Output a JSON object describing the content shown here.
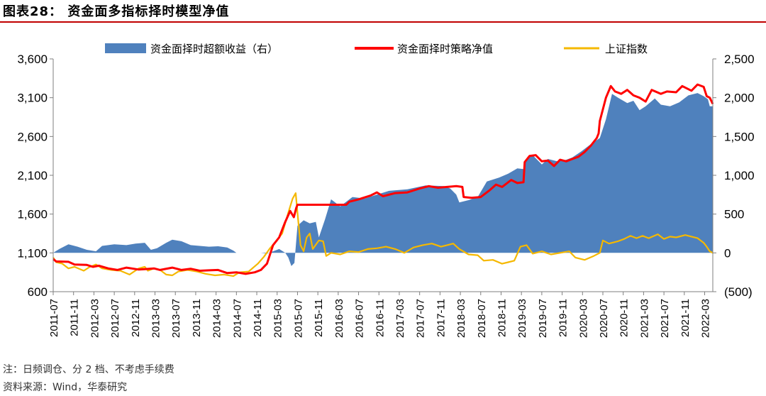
{
  "header": {
    "title": "图表28：  资金面多指标择时模型净值"
  },
  "footer": {
    "note": "注：日频调仓、分 2 档、不考虑手续费",
    "source": "资料来源：Wind，华泰研究"
  },
  "colors": {
    "excess": "#4f81bd",
    "strategy": "#ff0000",
    "index": "#f5b800",
    "rule": "#c00000"
  },
  "chart_data": {
    "type": "line",
    "title": "资金面多指标择时模型净值",
    "legend": [
      "资金面择时超额收益（右）",
      "资金面择时策略净值",
      "上证指数"
    ],
    "legend_position": "top",
    "left_axis": {
      "range": [
        600,
        3600
      ],
      "ticks": [
        "600",
        "1,100",
        "1,600",
        "2,100",
        "2,600",
        "3,100",
        "3,600"
      ]
    },
    "right_axis": {
      "range": [
        -500,
        2500
      ],
      "ticks": [
        "(500)",
        "0",
        "500",
        "1,000",
        "1,500",
        "2,000",
        "2,500"
      ]
    },
    "x_tick_labels": [
      "2011-07",
      "2011-11",
      "2012-03",
      "2012-07",
      "2012-11",
      "2013-03",
      "2013-07",
      "2013-11",
      "2014-03",
      "2014-07",
      "2014-11",
      "2015-03",
      "2015-07",
      "2015-11",
      "2016-03",
      "2016-07",
      "2016-11",
      "2017-03",
      "2017-07",
      "2017-11",
      "2018-03",
      "2018-07",
      "2018-11",
      "2019-03",
      "2019-07",
      "2019-11",
      "2020-03",
      "2020-07",
      "2020-11",
      "2021-03",
      "2021-07",
      "2021-11",
      "2022-03"
    ],
    "x_time_range": [
      2011.5,
      2022.3
    ],
    "series": [
      {
        "name": "资金面择时超额收益（右）",
        "type": "area",
        "axis": "right",
        "points": [
          [
            2011.5,
            0
          ],
          [
            2011.6,
            50
          ],
          [
            2011.75,
            110
          ],
          [
            2011.9,
            80
          ],
          [
            2012.05,
            40
          ],
          [
            2012.2,
            20
          ],
          [
            2012.3,
            90
          ],
          [
            2012.5,
            110
          ],
          [
            2012.7,
            100
          ],
          [
            2012.85,
            120
          ],
          [
            2013.0,
            130
          ],
          [
            2013.1,
            40
          ],
          [
            2013.2,
            60
          ],
          [
            2013.35,
            130
          ],
          [
            2013.45,
            170
          ],
          [
            2013.6,
            150
          ],
          [
            2013.75,
            100
          ],
          [
            2013.9,
            90
          ],
          [
            2014.05,
            80
          ],
          [
            2014.2,
            85
          ],
          [
            2014.35,
            70
          ],
          [
            2014.45,
            30
          ],
          [
            2014.5,
            0
          ],
          [
            2014.9,
            0
          ],
          [
            2015.0,
            -10
          ],
          [
            2015.1,
            20
          ],
          [
            2015.2,
            50
          ],
          [
            2015.3,
            0
          ],
          [
            2015.35,
            -60
          ],
          [
            2015.4,
            -170
          ],
          [
            2015.45,
            -130
          ],
          [
            2015.5,
            350
          ],
          [
            2015.6,
            420
          ],
          [
            2015.7,
            380
          ],
          [
            2015.8,
            400
          ],
          [
            2015.85,
            200
          ],
          [
            2015.95,
            430
          ],
          [
            2016.05,
            690
          ],
          [
            2016.2,
            600
          ],
          [
            2016.4,
            720
          ],
          [
            2016.6,
            700
          ],
          [
            2016.8,
            750
          ],
          [
            2017.0,
            800
          ],
          [
            2017.3,
            820
          ],
          [
            2017.6,
            870
          ],
          [
            2017.9,
            860
          ],
          [
            2018.0,
            830
          ],
          [
            2018.1,
            750
          ],
          [
            2018.15,
            650
          ],
          [
            2018.3,
            680
          ],
          [
            2018.45,
            720
          ],
          [
            2018.6,
            920
          ],
          [
            2018.8,
            970
          ],
          [
            2018.95,
            1020
          ],
          [
            2019.1,
            1090
          ],
          [
            2019.2,
            1080
          ],
          [
            2019.25,
            1220
          ],
          [
            2019.35,
            1260
          ],
          [
            2019.5,
            1140
          ],
          [
            2019.6,
            1210
          ],
          [
            2019.75,
            1180
          ],
          [
            2019.9,
            1200
          ],
          [
            2020.0,
            1230
          ],
          [
            2020.15,
            1310
          ],
          [
            2020.3,
            1400
          ],
          [
            2020.45,
            1480
          ],
          [
            2020.55,
            1720
          ],
          [
            2020.65,
            2050
          ],
          [
            2020.75,
            2000
          ],
          [
            2020.9,
            1930
          ],
          [
            2021.0,
            1960
          ],
          [
            2021.1,
            1840
          ],
          [
            2021.2,
            1890
          ],
          [
            2021.35,
            1990
          ],
          [
            2021.45,
            1910
          ],
          [
            2021.6,
            1890
          ],
          [
            2021.75,
            1940
          ],
          [
            2021.9,
            2030
          ],
          [
            2022.05,
            2060
          ],
          [
            2022.15,
            2020
          ],
          [
            2022.22,
            1980
          ],
          [
            2022.25,
            1890
          ],
          [
            2022.3,
            1890
          ]
        ]
      },
      {
        "name": "资金面择时策略净值",
        "type": "line",
        "axis": "left",
        "points": [
          [
            2011.5,
            1020
          ],
          [
            2011.55,
            990
          ],
          [
            2011.75,
            985
          ],
          [
            2011.85,
            950
          ],
          [
            2012.05,
            945
          ],
          [
            2012.15,
            920
          ],
          [
            2012.25,
            935
          ],
          [
            2012.4,
            900
          ],
          [
            2012.55,
            880
          ],
          [
            2012.7,
            910
          ],
          [
            2012.9,
            885
          ],
          [
            2013.0,
            890
          ],
          [
            2013.15,
            900
          ],
          [
            2013.25,
            880
          ],
          [
            2013.45,
            910
          ],
          [
            2013.6,
            880
          ],
          [
            2013.75,
            895
          ],
          [
            2013.9,
            870
          ],
          [
            2014.05,
            875
          ],
          [
            2014.2,
            880
          ],
          [
            2014.35,
            840
          ],
          [
            2014.5,
            850
          ],
          [
            2014.65,
            830
          ],
          [
            2014.8,
            850
          ],
          [
            2014.9,
            880
          ],
          [
            2015.0,
            960
          ],
          [
            2015.1,
            1200
          ],
          [
            2015.2,
            1300
          ],
          [
            2015.3,
            1500
          ],
          [
            2015.38,
            1640
          ],
          [
            2015.44,
            1560
          ],
          [
            2015.48,
            1680
          ],
          [
            2015.5,
            1720
          ],
          [
            2015.6,
            1720
          ],
          [
            2016.0,
            1720
          ],
          [
            2016.3,
            1720
          ],
          [
            2016.35,
            1760
          ],
          [
            2016.5,
            1790
          ],
          [
            2016.7,
            1840
          ],
          [
            2016.8,
            1880
          ],
          [
            2016.9,
            1830
          ],
          [
            2017.1,
            1870
          ],
          [
            2017.3,
            1880
          ],
          [
            2017.5,
            1930
          ],
          [
            2017.65,
            1960
          ],
          [
            2017.8,
            1940
          ],
          [
            2017.95,
            1950
          ],
          [
            2018.1,
            1960
          ],
          [
            2018.2,
            1950
          ],
          [
            2018.22,
            1820
          ],
          [
            2018.35,
            1810
          ],
          [
            2018.5,
            1820
          ],
          [
            2018.65,
            1910
          ],
          [
            2018.75,
            1980
          ],
          [
            2018.85,
            1950
          ],
          [
            2019.0,
            2040
          ],
          [
            2019.1,
            2000
          ],
          [
            2019.2,
            2010
          ],
          [
            2019.22,
            2270
          ],
          [
            2019.3,
            2350
          ],
          [
            2019.4,
            2360
          ],
          [
            2019.5,
            2280
          ],
          [
            2019.6,
            2290
          ],
          [
            2019.7,
            2220
          ],
          [
            2019.8,
            2300
          ],
          [
            2019.9,
            2280
          ],
          [
            2020.0,
            2310
          ],
          [
            2020.1,
            2340
          ],
          [
            2020.2,
            2400
          ],
          [
            2020.3,
            2480
          ],
          [
            2020.4,
            2580
          ],
          [
            2020.43,
            2640
          ],
          [
            2020.45,
            2800
          ],
          [
            2020.55,
            3100
          ],
          [
            2020.63,
            3250
          ],
          [
            2020.7,
            3180
          ],
          [
            2020.8,
            3150
          ],
          [
            2020.9,
            3200
          ],
          [
            2021.0,
            3130
          ],
          [
            2021.1,
            3100
          ],
          [
            2021.2,
            3050
          ],
          [
            2021.3,
            3200
          ],
          [
            2021.45,
            3150
          ],
          [
            2021.55,
            3180
          ],
          [
            2021.7,
            3170
          ],
          [
            2021.8,
            3250
          ],
          [
            2021.95,
            3190
          ],
          [
            2022.05,
            3270
          ],
          [
            2022.15,
            3240
          ],
          [
            2022.2,
            3120
          ],
          [
            2022.25,
            3100
          ],
          [
            2022.3,
            3020
          ]
        ]
      },
      {
        "name": "上证指数",
        "type": "line",
        "axis": "left",
        "points": [
          [
            2011.5,
            1040
          ],
          [
            2011.55,
            980
          ],
          [
            2011.65,
            960
          ],
          [
            2011.75,
            900
          ],
          [
            2011.85,
            920
          ],
          [
            2012.0,
            870
          ],
          [
            2012.1,
            920
          ],
          [
            2012.2,
            950
          ],
          [
            2012.3,
            900
          ],
          [
            2012.45,
            880
          ],
          [
            2012.6,
            870
          ],
          [
            2012.75,
            820
          ],
          [
            2012.9,
            900
          ],
          [
            2013.0,
            920
          ],
          [
            2013.05,
            870
          ],
          [
            2013.15,
            900
          ],
          [
            2013.25,
            880
          ],
          [
            2013.35,
            820
          ],
          [
            2013.45,
            810
          ],
          [
            2013.55,
            860
          ],
          [
            2013.7,
            880
          ],
          [
            2013.85,
            860
          ],
          [
            2014.0,
            830
          ],
          [
            2014.15,
            810
          ],
          [
            2014.3,
            820
          ],
          [
            2014.45,
            800
          ],
          [
            2014.55,
            850
          ],
          [
            2014.7,
            860
          ],
          [
            2014.85,
            960
          ],
          [
            2014.95,
            1050
          ],
          [
            2015.05,
            1160
          ],
          [
            2015.15,
            1250
          ],
          [
            2015.25,
            1350
          ],
          [
            2015.35,
            1620
          ],
          [
            2015.42,
            1800
          ],
          [
            2015.47,
            1870
          ],
          [
            2015.5,
            1620
          ],
          [
            2015.55,
            1200
          ],
          [
            2015.6,
            1120
          ],
          [
            2015.65,
            1300
          ],
          [
            2015.7,
            1350
          ],
          [
            2015.75,
            1150
          ],
          [
            2015.85,
            1260
          ],
          [
            2015.92,
            1250
          ],
          [
            2015.97,
            1060
          ],
          [
            2016.05,
            1100
          ],
          [
            2016.2,
            1080
          ],
          [
            2016.35,
            1120
          ],
          [
            2016.5,
            1110
          ],
          [
            2016.65,
            1150
          ],
          [
            2016.8,
            1160
          ],
          [
            2016.95,
            1180
          ],
          [
            2017.1,
            1150
          ],
          [
            2017.25,
            1100
          ],
          [
            2017.4,
            1170
          ],
          [
            2017.55,
            1200
          ],
          [
            2017.7,
            1220
          ],
          [
            2017.85,
            1180
          ],
          [
            2017.95,
            1200
          ],
          [
            2018.05,
            1220
          ],
          [
            2018.15,
            1150
          ],
          [
            2018.3,
            1080
          ],
          [
            2018.45,
            1070
          ],
          [
            2018.55,
            1000
          ],
          [
            2018.7,
            1010
          ],
          [
            2018.85,
            960
          ],
          [
            2018.95,
            980
          ],
          [
            2019.05,
            1000
          ],
          [
            2019.15,
            1180
          ],
          [
            2019.25,
            1200
          ],
          [
            2019.35,
            1090
          ],
          [
            2019.5,
            1120
          ],
          [
            2019.65,
            1080
          ],
          [
            2019.8,
            1100
          ],
          [
            2019.95,
            1120
          ],
          [
            2020.05,
            1040
          ],
          [
            2020.2,
            1010
          ],
          [
            2020.35,
            1060
          ],
          [
            2020.45,
            1100
          ],
          [
            2020.5,
            1260
          ],
          [
            2020.6,
            1220
          ],
          [
            2020.75,
            1250
          ],
          [
            2020.85,
            1280
          ],
          [
            2020.95,
            1320
          ],
          [
            2021.05,
            1290
          ],
          [
            2021.15,
            1320
          ],
          [
            2021.25,
            1290
          ],
          [
            2021.4,
            1340
          ],
          [
            2021.5,
            1280
          ],
          [
            2021.6,
            1310
          ],
          [
            2021.7,
            1300
          ],
          [
            2021.85,
            1330
          ],
          [
            2021.95,
            1310
          ],
          [
            2022.05,
            1290
          ],
          [
            2022.15,
            1230
          ],
          [
            2022.2,
            1180
          ],
          [
            2022.25,
            1120
          ],
          [
            2022.3,
            1100
          ]
        ]
      }
    ]
  }
}
